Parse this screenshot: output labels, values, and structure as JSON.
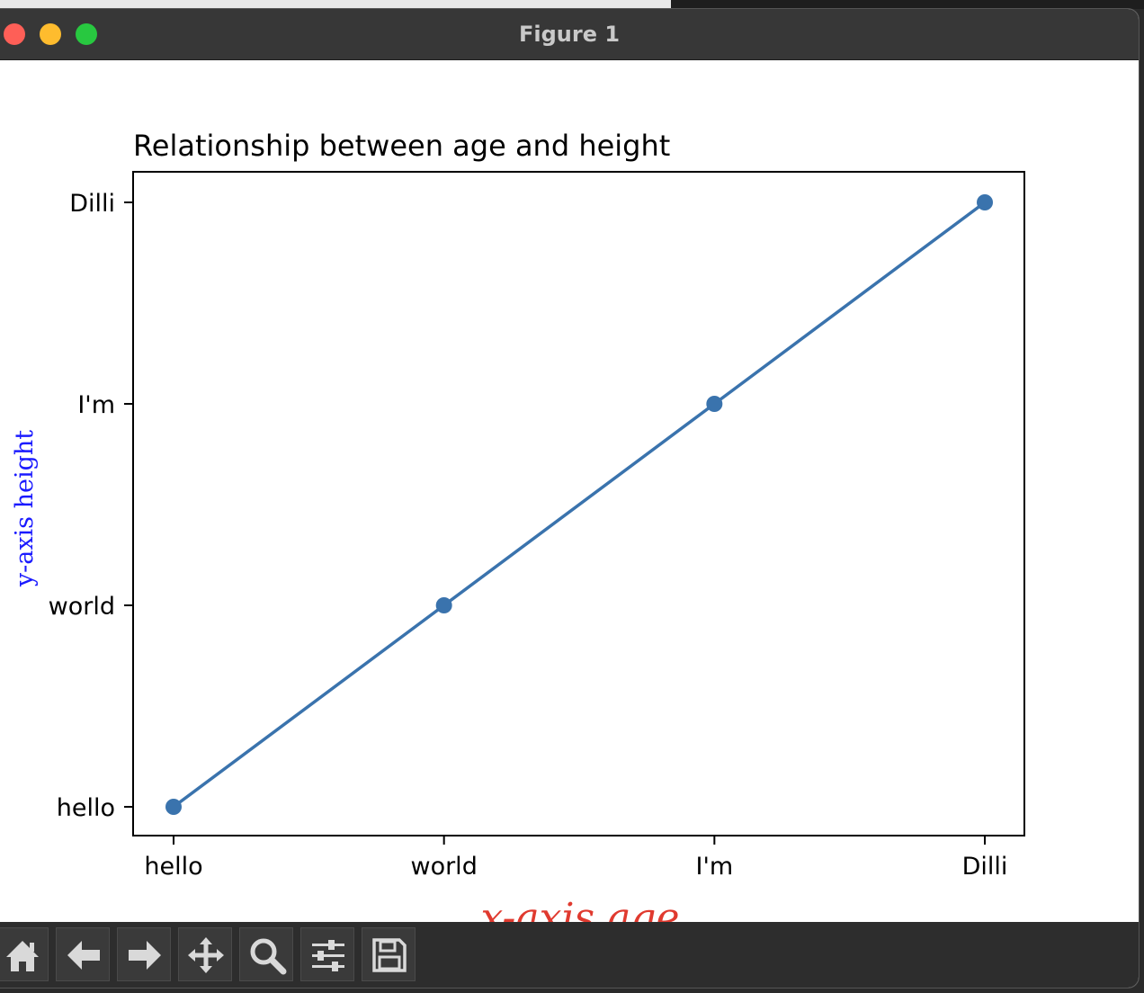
{
  "window": {
    "title": "Figure 1"
  },
  "toolbar": {
    "buttons": [
      {
        "icon": "home-icon"
      },
      {
        "icon": "back-arrow-icon"
      },
      {
        "icon": "forward-arrow-icon"
      },
      {
        "icon": "pan-move-icon"
      },
      {
        "icon": "zoom-magnifier-icon"
      },
      {
        "icon": "configure-sliders-icon"
      },
      {
        "icon": "save-floppy-icon"
      }
    ]
  },
  "chart_data": {
    "type": "line",
    "title": "Relationship between age and height",
    "xlabel": "x-axis age",
    "ylabel": "y-axis height",
    "xlabel_color": "#e03a2f",
    "ylabel_color": "#1a1aff",
    "line_color": "#3a73ad",
    "categories": [
      "hello",
      "world",
      "I'm",
      "Dilli"
    ],
    "y_categories": [
      "hello",
      "world",
      "I'm",
      "Dilli"
    ],
    "x": [
      "hello",
      "world",
      "I'm",
      "Dilli"
    ],
    "y": [
      "hello",
      "world",
      "I'm",
      "Dilli"
    ],
    "grid": false,
    "markers": true
  }
}
